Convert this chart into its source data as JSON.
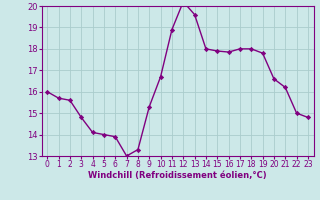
{
  "x": [
    0,
    1,
    2,
    3,
    4,
    5,
    6,
    7,
    8,
    9,
    10,
    11,
    12,
    13,
    14,
    15,
    16,
    17,
    18,
    19,
    20,
    21,
    22,
    23
  ],
  "y": [
    16.0,
    15.7,
    15.6,
    14.8,
    14.1,
    14.0,
    13.9,
    13.0,
    13.3,
    15.3,
    16.7,
    18.9,
    20.2,
    19.6,
    18.0,
    17.9,
    17.85,
    18.0,
    18.0,
    17.8,
    16.6,
    16.2,
    15.0,
    14.8
  ],
  "line_color": "#800080",
  "marker": "D",
  "marker_size": 2.2,
  "bg_color": "#cce8e8",
  "grid_color": "#aacccc",
  "xlabel": "Windchill (Refroidissement éolien,°C)",
  "xlabel_color": "#800080",
  "tick_color": "#800080",
  "label_color": "#800080",
  "ylim": [
    13,
    20
  ],
  "xlim": [
    -0.5,
    23.5
  ],
  "yticks": [
    13,
    14,
    15,
    16,
    17,
    18,
    19,
    20
  ],
  "xticks": [
    0,
    1,
    2,
    3,
    4,
    5,
    6,
    7,
    8,
    9,
    10,
    11,
    12,
    13,
    14,
    15,
    16,
    17,
    18,
    19,
    20,
    21,
    22,
    23
  ],
  "spine_color": "#800080",
  "linewidth": 1.0,
  "xlabel_fontsize": 6.0,
  "tick_fontsize": 5.5,
  "ytick_fontsize": 6.0
}
